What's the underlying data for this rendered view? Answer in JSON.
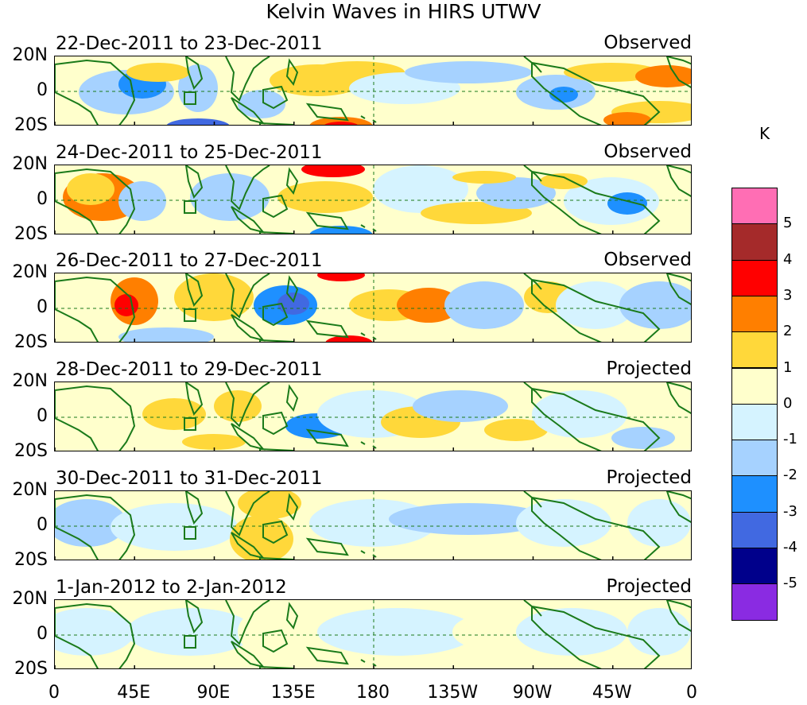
{
  "title": "Kelvin Waves in HIRS UTWV",
  "panels": [
    {
      "date_range": "22-Dec-2011 to 23-Dec-2011",
      "status": "Observed"
    },
    {
      "date_range": "24-Dec-2011 to 25-Dec-2011",
      "status": "Observed"
    },
    {
      "date_range": "26-Dec-2011 to 27-Dec-2011",
      "status": "Observed"
    },
    {
      "date_range": "28-Dec-2011 to 29-Dec-2011",
      "status": "Projected"
    },
    {
      "date_range": "30-Dec-2011 to 31-Dec-2011",
      "status": "Projected"
    },
    {
      "date_range": "1-Jan-2012 to 2-Jan-2012",
      "status": "Projected"
    }
  ],
  "lat_ticks": [
    "20N",
    "0",
    "20S"
  ],
  "lon_ticks": [
    "0",
    "45E",
    "90E",
    "135E",
    "180",
    "135W",
    "90W",
    "45W",
    "0"
  ],
  "colorbar": {
    "unit": "K",
    "levels": [
      "5",
      "4",
      "3",
      "2",
      "1",
      "0",
      "-1",
      "-2",
      "-3",
      "-4",
      "-5"
    ],
    "colors": [
      "#ff6eb4",
      "#a52a2a",
      "#ff0000",
      "#ff7f00",
      "#ffd83a",
      "#ffffcc",
      "#d5f3ff",
      "#a6d2ff",
      "#1e90ff",
      "#4169e1",
      "#00008b",
      "#8a2be2"
    ]
  }
}
